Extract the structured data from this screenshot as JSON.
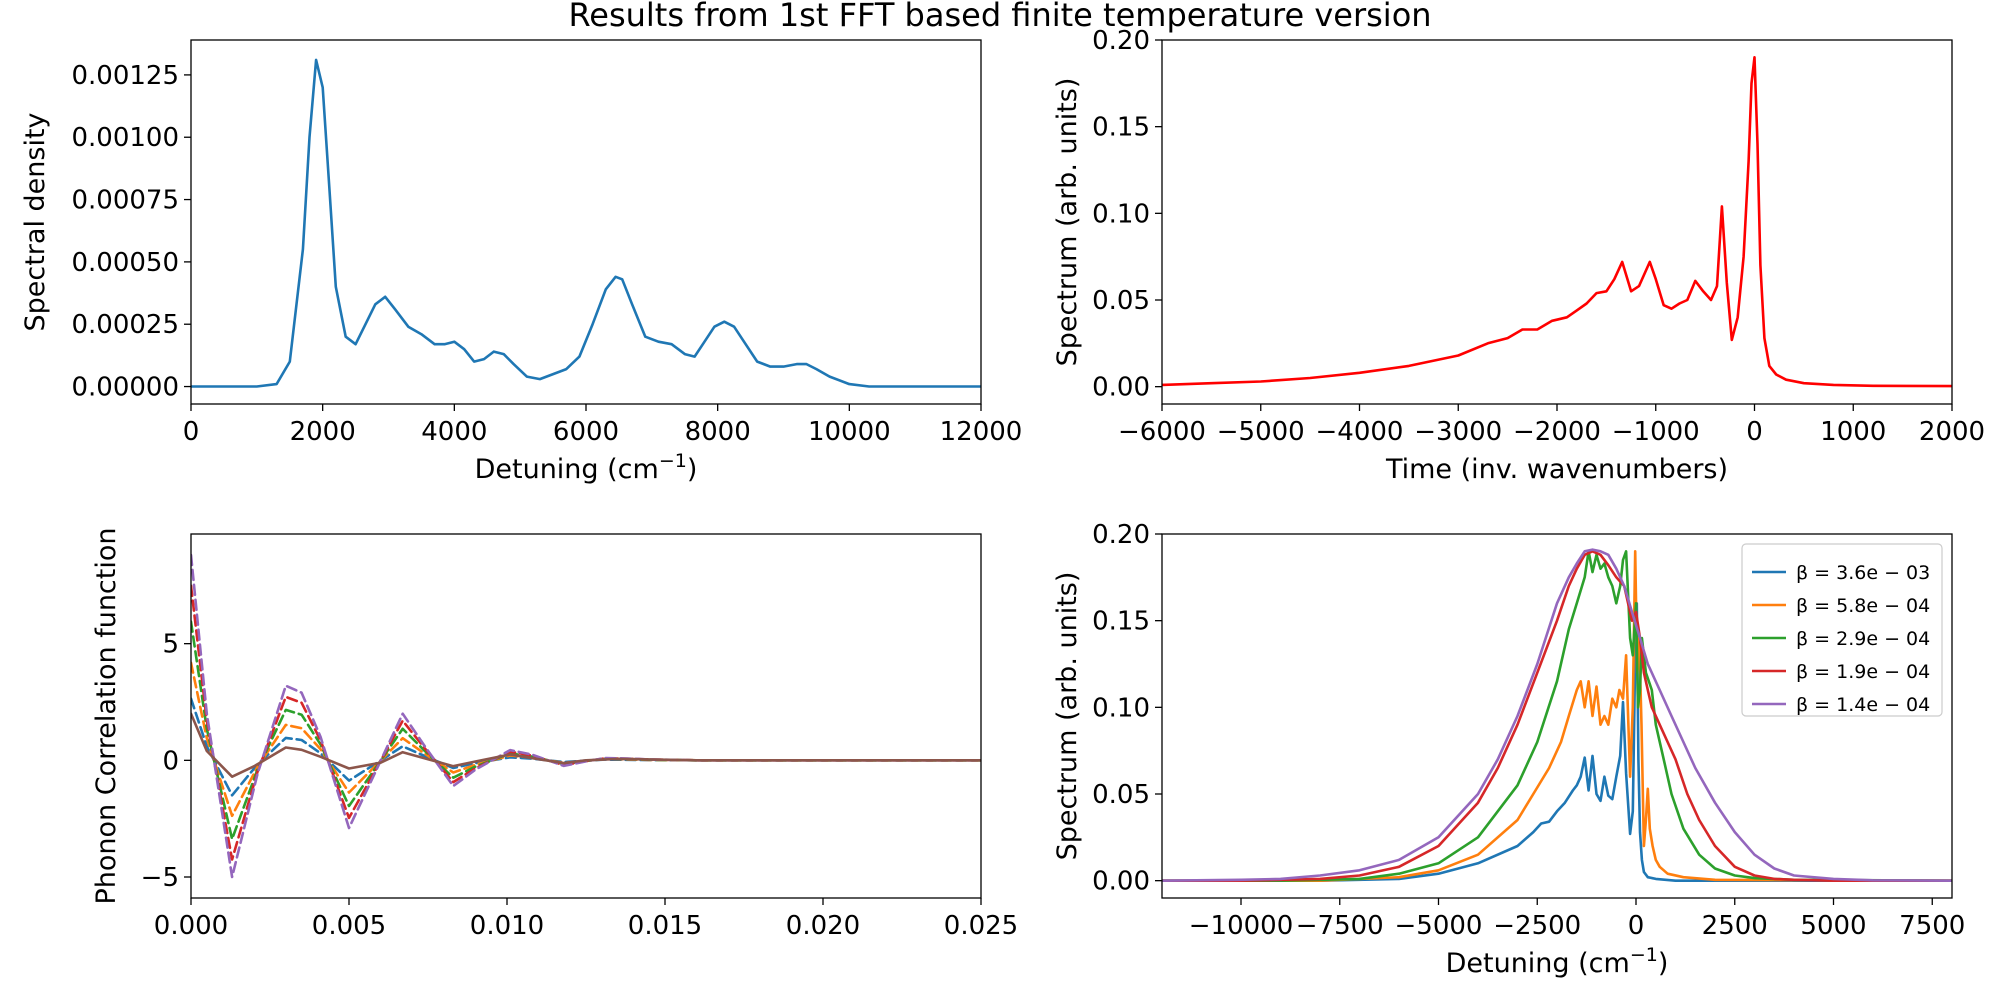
{
  "figure": {
    "title": "Results from 1st FFT based finite temperature version"
  },
  "chart_data": [
    {
      "id": "spectral-density",
      "type": "line",
      "title": "",
      "xlabel": "Detuning (cm",
      "xlabel_sup": "−1",
      "xlabel_tail": ")",
      "ylabel": "Spectral density",
      "xlim": [
        0,
        12000
      ],
      "ylim": [
        -7e-05,
        0.00139
      ],
      "xticks": [
        0,
        2000,
        4000,
        6000,
        8000,
        10000,
        12000
      ],
      "xtick_labels": [
        "0",
        "2000",
        "4000",
        "6000",
        "8000",
        "10000",
        "12000"
      ],
      "yticks": [
        0,
        0.00025,
        0.0005,
        0.00075,
        0.001,
        0.00125
      ],
      "ytick_labels": [
        "0.00000",
        "0.00025",
        "0.00050",
        "0.00075",
        "0.00100",
        "0.00125"
      ],
      "grid": false,
      "series": [
        {
          "color": "#1f77b4",
          "dash": false,
          "x": [
            0,
            1000,
            1300,
            1500,
            1700,
            1800,
            1900,
            2000,
            2100,
            2200,
            2350,
            2500,
            2650,
            2800,
            2950,
            3100,
            3300,
            3500,
            3700,
            3850,
            4000,
            4150,
            4300,
            4450,
            4600,
            4750,
            4900,
            5100,
            5300,
            5500,
            5700,
            5900,
            6100,
            6300,
            6450,
            6550,
            6700,
            6900,
            7100,
            7300,
            7500,
            7650,
            7800,
            7950,
            8100,
            8250,
            8400,
            8600,
            8800,
            9000,
            9200,
            9350,
            9500,
            9700,
            10000,
            10300,
            10600,
            12000
          ],
          "y": [
            0,
            0,
            1e-05,
            0.0001,
            0.00055,
            0.001,
            0.00131,
            0.0012,
            0.0008,
            0.0004,
            0.0002,
            0.00017,
            0.00025,
            0.00033,
            0.00036,
            0.00031,
            0.00024,
            0.00021,
            0.00017,
            0.00017,
            0.00018,
            0.00015,
            0.0001,
            0.00011,
            0.00014,
            0.00013,
            9e-05,
            4e-05,
            3e-05,
            5e-05,
            7e-05,
            0.00012,
            0.00025,
            0.00039,
            0.00044,
            0.00043,
            0.00033,
            0.0002,
            0.00018,
            0.00017,
            0.00013,
            0.00012,
            0.00018,
            0.00024,
            0.00026,
            0.00024,
            0.00018,
            0.0001,
            8e-05,
            8e-05,
            9e-05,
            9e-05,
            7e-05,
            4e-05,
            1e-05,
            0,
            0,
            0
          ]
        }
      ]
    },
    {
      "id": "time-spectrum",
      "type": "line",
      "title": "",
      "xlabel": "Time (inv. wavenumbers)",
      "ylabel": "Spectrum (arb. units)",
      "xlim": [
        -6000,
        2000
      ],
      "ylim": [
        -0.01,
        0.2
      ],
      "xticks": [
        -6000,
        -5000,
        -4000,
        -3000,
        -2000,
        -1000,
        0,
        1000,
        2000
      ],
      "xtick_labels": [
        "−6000",
        "−5000",
        "−4000",
        "−3000",
        "−2000",
        "−1000",
        "0",
        "1000",
        "2000"
      ],
      "yticks": [
        0,
        0.05,
        0.1,
        0.15,
        0.2
      ],
      "ytick_labels": [
        "0.00",
        "0.05",
        "0.10",
        "0.15",
        "0.20"
      ],
      "grid": false,
      "series": [
        {
          "color": "#ff0000",
          "dash": false,
          "x": [
            -6000,
            -5500,
            -5000,
            -4500,
            -4000,
            -3500,
            -3000,
            -2700,
            -2500,
            -2350,
            -2200,
            -2050,
            -1900,
            -1800,
            -1700,
            -1600,
            -1500,
            -1420,
            -1340,
            -1250,
            -1170,
            -1060,
            -1000,
            -920,
            -840,
            -760,
            -680,
            -600,
            -520,
            -440,
            -380,
            -330,
            -280,
            -230,
            -170,
            -110,
            -60,
            -30,
            0,
            30,
            60,
            100,
            150,
            220,
            320,
            500,
            800,
            1200,
            2000
          ],
          "y": [
            0.001,
            0.002,
            0.003,
            0.005,
            0.008,
            0.012,
            0.018,
            0.025,
            0.028,
            0.033,
            0.033,
            0.038,
            0.04,
            0.044,
            0.048,
            0.054,
            0.055,
            0.062,
            0.072,
            0.055,
            0.058,
            0.072,
            0.062,
            0.047,
            0.045,
            0.048,
            0.05,
            0.061,
            0.055,
            0.05,
            0.058,
            0.104,
            0.06,
            0.027,
            0.04,
            0.075,
            0.13,
            0.175,
            0.19,
            0.14,
            0.07,
            0.028,
            0.012,
            0.007,
            0.004,
            0.002,
            0.001,
            0.0005,
            0.0003
          ]
        }
      ]
    },
    {
      "id": "phonon-correlation",
      "type": "line",
      "title": "",
      "xlabel": "",
      "ylabel": "Phonon Correlation function",
      "xlim": [
        0,
        0.025
      ],
      "ylim": [
        -5.9,
        9.7
      ],
      "xticks": [
        0,
        0.005,
        0.01,
        0.015,
        0.02,
        0.025
      ],
      "xtick_labels": [
        "0.000",
        "0.005",
        "0.010",
        "0.015",
        "0.020",
        "0.025"
      ],
      "yticks": [
        -5,
        0,
        5
      ],
      "ytick_labels": [
        "−5",
        "0",
        "5"
      ],
      "grid": false,
      "base_x": [
        0,
        0.0005,
        0.0013,
        0.0021,
        0.003,
        0.0035,
        0.0041,
        0.005,
        0.0058,
        0.0067,
        0.0074,
        0.0083,
        0.009,
        0.0101,
        0.0108,
        0.0118,
        0.0125,
        0.0131,
        0.0138,
        0.0145,
        0.016,
        0.02,
        0.025
      ],
      "series": [
        {
          "color": "#1f77b4",
          "dash": true,
          "scale": 0.6
        },
        {
          "color": "#ff7f0e",
          "dash": true,
          "scale": 0.95
        },
        {
          "color": "#2ca02c",
          "dash": true,
          "scale": 1.35
        },
        {
          "color": "#d62728",
          "dash": true,
          "scale": 1.7
        },
        {
          "color": "#9467bd",
          "dash": true,
          "scale": 2.0
        },
        {
          "color": "#8c564b",
          "dash": false,
          "scale": 0.3
        }
      ],
      "base_y": [
        4.4,
        1.0,
        -2.5,
        -0.3,
        1.6,
        1.45,
        0.5,
        -1.45,
        -0.3,
        1.0,
        0.3,
        -0.55,
        -0.2,
        0.22,
        0.12,
        -0.12,
        -0.02,
        0.05,
        0.04,
        0.02,
        0,
        0,
        0
      ],
      "brown_x": [
        0,
        0.0005,
        0.0013,
        0.002,
        0.003,
        0.0035,
        0.0041,
        0.005,
        0.006,
        0.0067,
        0.0075,
        0.0083,
        0.009,
        0.0101,
        0.011,
        0.0118,
        0.0125,
        0.0135,
        0.016,
        0.025
      ],
      "brown_y": [
        2.0,
        0.4,
        -0.7,
        -0.25,
        0.55,
        0.45,
        0.15,
        -0.35,
        -0.1,
        0.35,
        0.05,
        -0.25,
        -0.05,
        0.25,
        0.05,
        -0.12,
        0,
        0.06,
        0,
        0
      ]
    },
    {
      "id": "detuning-spectrum",
      "type": "line",
      "title": "",
      "xlabel": "Detuning (cm",
      "xlabel_sup": "−1",
      "xlabel_tail": ")",
      "ylabel": "Spectrum (arb. units)",
      "xlim": [
        -12000,
        8000
      ],
      "ylim": [
        -0.01,
        0.2
      ],
      "xticks": [
        -10000,
        -7500,
        -5000,
        -2500,
        0,
        2500,
        5000,
        7500
      ],
      "xtick_labels": [
        "−10000",
        "−7500",
        "−5000",
        "−2500",
        "0",
        "2500",
        "5000",
        "7500"
      ],
      "yticks": [
        0,
        0.05,
        0.1,
        0.15,
        0.2
      ],
      "ytick_labels": [
        "0.00",
        "0.05",
        "0.10",
        "0.15",
        "0.20"
      ],
      "grid": false,
      "legend": {
        "placement": "top-right",
        "entries": [
          "β = 3.6e − 03",
          "β = 5.8e − 04",
          "β = 2.9e − 04",
          "β = 1.9e − 04",
          "β = 1.4e − 04"
        ]
      },
      "series": [
        {
          "name": "β = 3.6e − 03",
          "color": "#1f77b4",
          "dash": false,
          "x": [
            -12000,
            -8000,
            -6000,
            -5000,
            -4000,
            -3000,
            -2600,
            -2400,
            -2200,
            -2000,
            -1800,
            -1600,
            -1500,
            -1400,
            -1300,
            -1200,
            -1100,
            -1000,
            -900,
            -800,
            -700,
            -600,
            -500,
            -400,
            -330,
            -250,
            -150,
            -80,
            -20,
            20,
            60,
            100,
            150,
            200,
            300,
            500,
            1000,
            8000
          ],
          "y": [
            0,
            0,
            0.001,
            0.004,
            0.01,
            0.02,
            0.028,
            0.033,
            0.034,
            0.04,
            0.045,
            0.052,
            0.055,
            0.06,
            0.071,
            0.052,
            0.072,
            0.05,
            0.046,
            0.06,
            0.049,
            0.047,
            0.06,
            0.072,
            0.103,
            0.062,
            0.027,
            0.04,
            0.13,
            0.16,
            0.07,
            0.028,
            0.012,
            0.005,
            0.002,
            0.001,
            0,
            0
          ]
        },
        {
          "name": "β = 5.8e − 04",
          "color": "#ff7f0e",
          "dash": false,
          "x": [
            -12000,
            -8000,
            -6000,
            -5000,
            -4000,
            -3000,
            -2600,
            -2200,
            -1900,
            -1700,
            -1500,
            -1400,
            -1300,
            -1200,
            -1100,
            -1000,
            -900,
            -800,
            -700,
            -600,
            -500,
            -420,
            -330,
            -250,
            -150,
            -80,
            -20,
            30,
            80,
            140,
            200,
            250,
            300,
            350,
            420,
            500,
            600,
            800,
            1200,
            2000,
            8000
          ],
          "y": [
            0,
            0,
            0.002,
            0.006,
            0.015,
            0.035,
            0.05,
            0.065,
            0.08,
            0.095,
            0.11,
            0.115,
            0.1,
            0.115,
            0.095,
            0.112,
            0.09,
            0.095,
            0.09,
            0.105,
            0.1,
            0.11,
            0.105,
            0.13,
            0.06,
            0.1,
            0.19,
            0.12,
            0.14,
            0.09,
            0.02,
            0.035,
            0.053,
            0.03,
            0.02,
            0.012,
            0.008,
            0.004,
            0.002,
            0.0005,
            0
          ]
        },
        {
          "name": "β = 2.9e − 04",
          "color": "#2ca02c",
          "dash": false,
          "x": [
            -12000,
            -9000,
            -7000,
            -6000,
            -5000,
            -4000,
            -3000,
            -2500,
            -2000,
            -1700,
            -1500,
            -1300,
            -1200,
            -1100,
            -1000,
            -900,
            -800,
            -700,
            -600,
            -500,
            -400,
            -330,
            -250,
            -150,
            -80,
            0,
            50,
            100,
            150,
            250,
            400,
            500,
            700,
            900,
            1200,
            1600,
            2000,
            2500,
            3000,
            4000,
            8000
          ],
          "y": [
            0,
            0,
            0.001,
            0.004,
            0.01,
            0.025,
            0.055,
            0.08,
            0.115,
            0.145,
            0.16,
            0.175,
            0.19,
            0.178,
            0.188,
            0.18,
            0.183,
            0.175,
            0.17,
            0.16,
            0.17,
            0.185,
            0.19,
            0.14,
            0.13,
            0.16,
            0.1,
            0.11,
            0.14,
            0.12,
            0.11,
            0.09,
            0.07,
            0.05,
            0.03,
            0.015,
            0.007,
            0.003,
            0.0015,
            0.0005,
            0
          ]
        },
        {
          "name": "β = 1.9e − 04",
          "color": "#d62728",
          "dash": false,
          "x": [
            -12000,
            -10000,
            -8000,
            -7000,
            -6000,
            -5000,
            -4000,
            -3500,
            -3000,
            -2500,
            -2000,
            -1700,
            -1500,
            -1300,
            -1100,
            -900,
            -700,
            -500,
            -300,
            -200,
            -100,
            0,
            100,
            200,
            300,
            400,
            600,
            800,
            1000,
            1300,
            1600,
            2000,
            2500,
            3000,
            3500,
            4000,
            5000,
            8000
          ],
          "y": [
            0,
            0,
            0.001,
            0.003,
            0.008,
            0.02,
            0.045,
            0.065,
            0.09,
            0.12,
            0.15,
            0.17,
            0.18,
            0.188,
            0.19,
            0.188,
            0.182,
            0.175,
            0.17,
            0.16,
            0.15,
            0.155,
            0.14,
            0.12,
            0.11,
            0.1,
            0.09,
            0.08,
            0.07,
            0.05,
            0.035,
            0.02,
            0.008,
            0.003,
            0.001,
            0.0005,
            0,
            0
          ]
        },
        {
          "name": "β = 1.4e − 04",
          "color": "#9467bd",
          "dash": false,
          "x": [
            -12000,
            -10000,
            -9000,
            -8000,
            -7000,
            -6000,
            -5000,
            -4000,
            -3500,
            -3000,
            -2500,
            -2000,
            -1700,
            -1500,
            -1300,
            -1100,
            -900,
            -700,
            -500,
            -300,
            -100,
            100,
            300,
            600,
            900,
            1200,
            1500,
            2000,
            2500,
            3000,
            3500,
            4000,
            5000,
            6000,
            8000
          ],
          "y": [
            0,
            0.0005,
            0.001,
            0.003,
            0.006,
            0.012,
            0.025,
            0.05,
            0.07,
            0.095,
            0.125,
            0.16,
            0.175,
            0.183,
            0.19,
            0.191,
            0.19,
            0.188,
            0.18,
            0.17,
            0.155,
            0.14,
            0.125,
            0.11,
            0.095,
            0.08,
            0.065,
            0.045,
            0.028,
            0.015,
            0.007,
            0.003,
            0.001,
            0.0002,
            0
          ]
        }
      ]
    }
  ]
}
